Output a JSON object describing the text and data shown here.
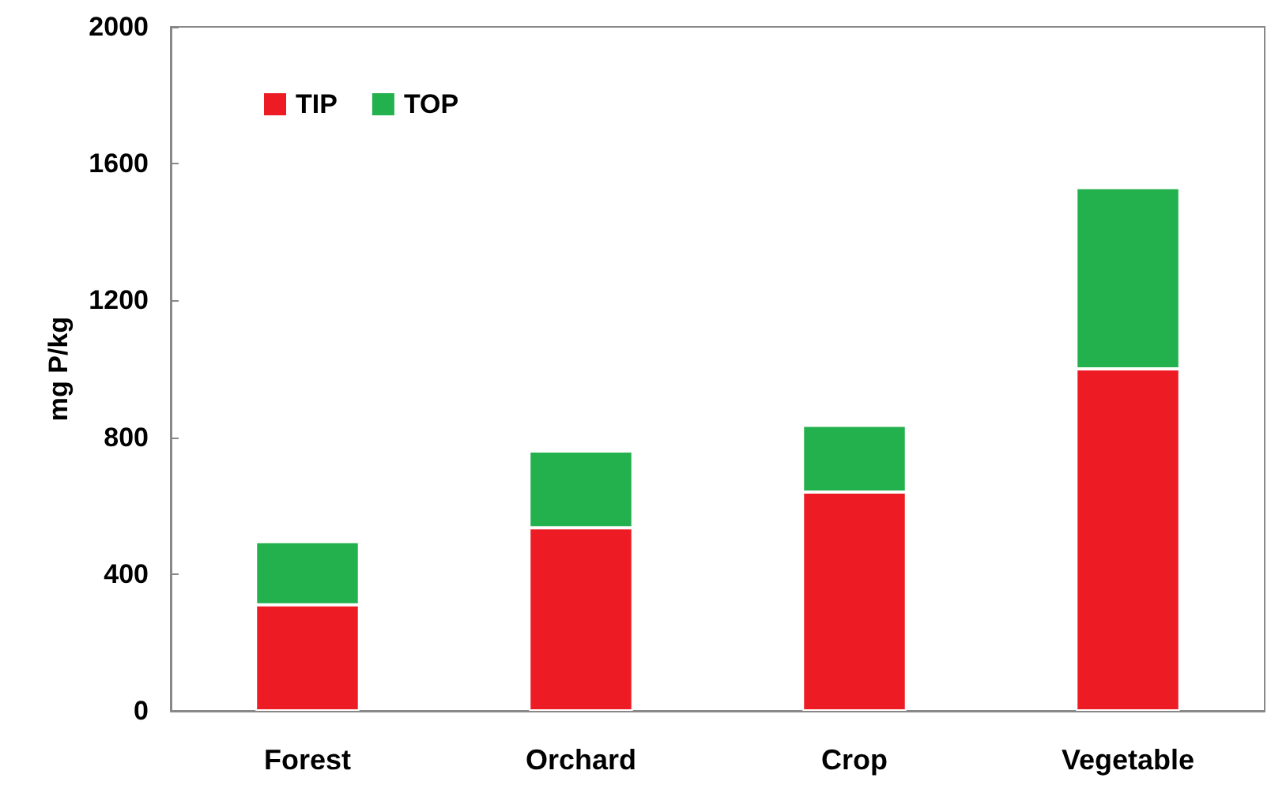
{
  "chart_data": {
    "type": "bar",
    "stacked": true,
    "ylabel": "mg P/kg",
    "categories": [
      "Forest",
      "Orchard",
      "Crop",
      "Vegetable"
    ],
    "series": [
      {
        "name": "TIP",
        "color": "#ed1c24",
        "values": [
          310,
          535,
          640,
          1000
        ]
      },
      {
        "name": "TOP",
        "color": "#22b14c",
        "values": [
          185,
          225,
          195,
          530
        ]
      }
    ],
    "ylim": [
      0,
      2000
    ],
    "yticks": [
      0,
      400,
      800,
      1200,
      1600,
      2000
    ],
    "legend": "top left",
    "grid": false
  }
}
